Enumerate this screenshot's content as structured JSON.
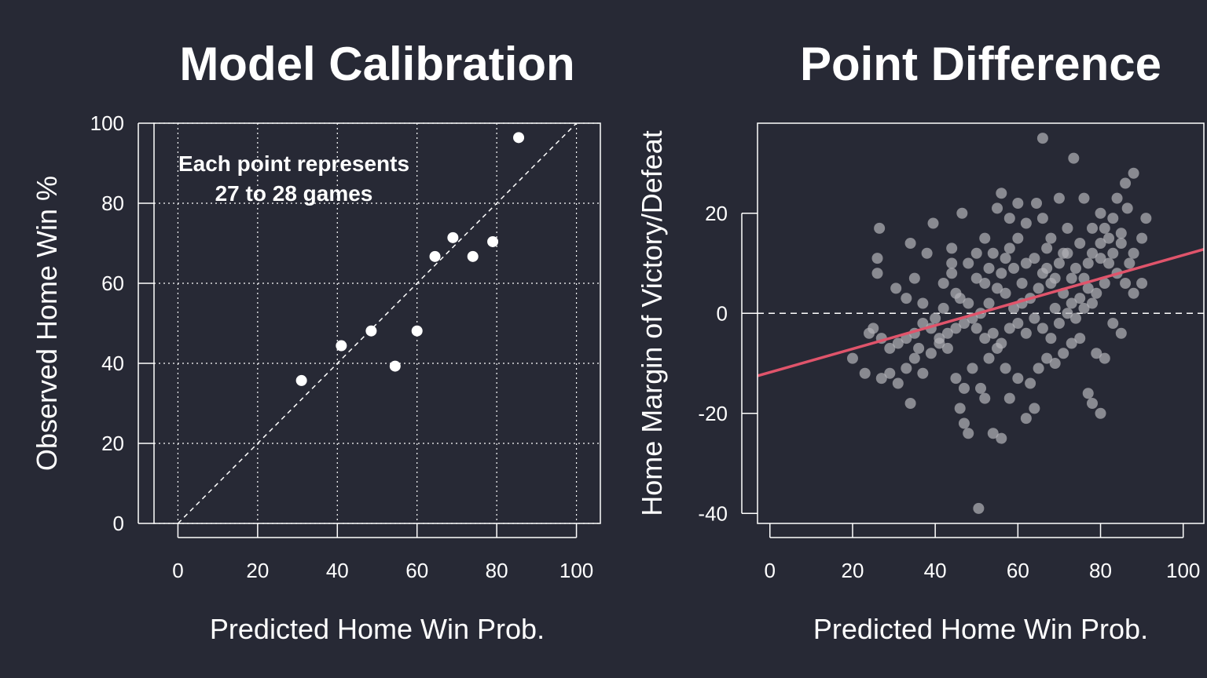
{
  "chart_data": [
    {
      "type": "scatter",
      "title": "Model Calibration",
      "xlabel": "Predicted Home Win Prob.",
      "ylabel": "Observed Home Win %",
      "xlim": [
        -6,
        106
      ],
      "ylim": [
        0,
        100
      ],
      "xticks": [
        0,
        20,
        40,
        60,
        80,
        100
      ],
      "yticks": [
        0,
        20,
        40,
        60,
        80,
        100
      ],
      "grid": true,
      "reference_line": "y = x (dashed)",
      "annotation": [
        "Each point represents",
        "27 to 28 games"
      ],
      "points": [
        {
          "x": 31,
          "y": 35.7
        },
        {
          "x": 41,
          "y": 44.4
        },
        {
          "x": 48.5,
          "y": 48.1
        },
        {
          "x": 54.5,
          "y": 39.3
        },
        {
          "x": 60,
          "y": 48.1
        },
        {
          "x": 64.5,
          "y": 66.7
        },
        {
          "x": 69,
          "y": 71.4
        },
        {
          "x": 74,
          "y": 66.7
        },
        {
          "x": 79,
          "y": 70.4
        },
        {
          "x": 85.5,
          "y": 96.4
        }
      ],
      "colors": {
        "points": "#ffffff",
        "reference": "#ffffff"
      }
    },
    {
      "type": "scatter",
      "title": "Point Difference",
      "xlabel": "Predicted Home Win Prob.",
      "ylabel": "Home Margin of Victory/Defeat",
      "xlim": [
        -3,
        105
      ],
      "ylim": [
        -42,
        38
      ],
      "xticks": [
        0,
        20,
        40,
        60,
        80,
        100
      ],
      "yticks": [
        -40,
        -20,
        0,
        20
      ],
      "grid": false,
      "zero_line": "y = 0 (dashed)",
      "trend_line": {
        "x0": -3,
        "y0": -12.5,
        "x1": 105,
        "y1": 12.8
      },
      "points": [
        {
          "x": 26.5,
          "y": 17
        },
        {
          "x": 34,
          "y": 14
        },
        {
          "x": 26,
          "y": 11
        },
        {
          "x": 30.5,
          "y": 5
        },
        {
          "x": 35,
          "y": 7
        },
        {
          "x": 38,
          "y": 12
        },
        {
          "x": 26,
          "y": 8
        },
        {
          "x": 37,
          "y": 2
        },
        {
          "x": 33,
          "y": 3
        },
        {
          "x": 39.5,
          "y": 18
        },
        {
          "x": 44,
          "y": 13
        },
        {
          "x": 46.5,
          "y": 20
        },
        {
          "x": 52,
          "y": 15
        },
        {
          "x": 55,
          "y": 21
        },
        {
          "x": 56,
          "y": 24
        },
        {
          "x": 66,
          "y": 35
        },
        {
          "x": 73.5,
          "y": 31
        },
        {
          "x": 64.5,
          "y": 22
        },
        {
          "x": 70,
          "y": 23
        },
        {
          "x": 76,
          "y": 23
        },
        {
          "x": 80,
          "y": 20
        },
        {
          "x": 84,
          "y": 23
        },
        {
          "x": 86,
          "y": 26
        },
        {
          "x": 88,
          "y": 28
        },
        {
          "x": 91,
          "y": 19
        },
        {
          "x": 86.5,
          "y": 21
        },
        {
          "x": 88,
          "y": 12
        },
        {
          "x": 90,
          "y": 15
        },
        {
          "x": 78,
          "y": 17
        },
        {
          "x": 72,
          "y": 17
        },
        {
          "x": 68,
          "y": 15
        },
        {
          "x": 62,
          "y": 18
        },
        {
          "x": 60,
          "y": 15
        },
        {
          "x": 58,
          "y": 13
        },
        {
          "x": 54,
          "y": 12
        },
        {
          "x": 50,
          "y": 12
        },
        {
          "x": 48,
          "y": 10
        },
        {
          "x": 44,
          "y": 8
        },
        {
          "x": 42,
          "y": 6
        },
        {
          "x": 45,
          "y": 4
        },
        {
          "x": 48,
          "y": 2
        },
        {
          "x": 46,
          "y": 3
        },
        {
          "x": 52,
          "y": 6
        },
        {
          "x": 56,
          "y": 8
        },
        {
          "x": 59,
          "y": 9
        },
        {
          "x": 62,
          "y": 10
        },
        {
          "x": 64,
          "y": 11
        },
        {
          "x": 66,
          "y": 8
        },
        {
          "x": 68,
          "y": 6
        },
        {
          "x": 70,
          "y": 10
        },
        {
          "x": 72,
          "y": 12
        },
        {
          "x": 74,
          "y": 9
        },
        {
          "x": 76,
          "y": 7
        },
        {
          "x": 78,
          "y": 12
        },
        {
          "x": 80,
          "y": 14
        },
        {
          "x": 82,
          "y": 10
        },
        {
          "x": 84,
          "y": 8
        },
        {
          "x": 86,
          "y": 6
        },
        {
          "x": 88,
          "y": 4
        },
        {
          "x": 90,
          "y": 6
        },
        {
          "x": 82,
          "y": 15
        },
        {
          "x": 80,
          "y": 11
        },
        {
          "x": 77,
          "y": 5
        },
        {
          "x": 75,
          "y": 3
        },
        {
          "x": 73,
          "y": 2
        },
        {
          "x": 71,
          "y": 4
        },
        {
          "x": 69,
          "y": 7
        },
        {
          "x": 67,
          "y": 9
        },
        {
          "x": 65,
          "y": 5
        },
        {
          "x": 63,
          "y": 3
        },
        {
          "x": 61,
          "y": 2
        },
        {
          "x": 59,
          "y": 1
        },
        {
          "x": 57,
          "y": 4
        },
        {
          "x": 55,
          "y": 5
        },
        {
          "x": 53,
          "y": 2
        },
        {
          "x": 51,
          "y": 0
        },
        {
          "x": 49,
          "y": -1
        },
        {
          "x": 47,
          "y": -2
        },
        {
          "x": 45,
          "y": -3
        },
        {
          "x": 43,
          "y": -4
        },
        {
          "x": 41,
          "y": -5
        },
        {
          "x": 39,
          "y": -3
        },
        {
          "x": 37,
          "y": -2
        },
        {
          "x": 35,
          "y": -4
        },
        {
          "x": 33,
          "y": -5
        },
        {
          "x": 31,
          "y": -6
        },
        {
          "x": 29,
          "y": -7
        },
        {
          "x": 27,
          "y": -5
        },
        {
          "x": 25,
          "y": -3
        },
        {
          "x": 24,
          "y": -4
        },
        {
          "x": 20,
          "y": -9
        },
        {
          "x": 23,
          "y": -12
        },
        {
          "x": 27,
          "y": -13
        },
        {
          "x": 29,
          "y": -12
        },
        {
          "x": 31,
          "y": -14
        },
        {
          "x": 33,
          "y": -11
        },
        {
          "x": 34,
          "y": -18
        },
        {
          "x": 35,
          "y": -9
        },
        {
          "x": 37,
          "y": -12
        },
        {
          "x": 39,
          "y": -8
        },
        {
          "x": 41,
          "y": -6
        },
        {
          "x": 43,
          "y": -7
        },
        {
          "x": 45,
          "y": -13
        },
        {
          "x": 46,
          "y": -19
        },
        {
          "x": 47,
          "y": -22
        },
        {
          "x": 48,
          "y": -24
        },
        {
          "x": 47,
          "y": -15
        },
        {
          "x": 49,
          "y": -11
        },
        {
          "x": 51,
          "y": -15
        },
        {
          "x": 52,
          "y": -17
        },
        {
          "x": 54,
          "y": -24
        },
        {
          "x": 56,
          "y": -25
        },
        {
          "x": 53,
          "y": -9
        },
        {
          "x": 55,
          "y": -7
        },
        {
          "x": 57,
          "y": -11
        },
        {
          "x": 58,
          "y": -17
        },
        {
          "x": 60,
          "y": -13
        },
        {
          "x": 62,
          "y": -21
        },
        {
          "x": 64,
          "y": -19
        },
        {
          "x": 63,
          "y": -14
        },
        {
          "x": 65,
          "y": -11
        },
        {
          "x": 67,
          "y": -9
        },
        {
          "x": 69,
          "y": -10
        },
        {
          "x": 71,
          "y": -8
        },
        {
          "x": 73,
          "y": -6
        },
        {
          "x": 75,
          "y": -5
        },
        {
          "x": 77,
          "y": -16
        },
        {
          "x": 78,
          "y": -18
        },
        {
          "x": 80,
          "y": -20
        },
        {
          "x": 79,
          "y": -8
        },
        {
          "x": 81,
          "y": -9
        },
        {
          "x": 83,
          "y": -2
        },
        {
          "x": 85,
          "y": -4
        },
        {
          "x": 58,
          "y": -3
        },
        {
          "x": 60,
          "y": -2
        },
        {
          "x": 62,
          "y": -4
        },
        {
          "x": 64,
          "y": -1
        },
        {
          "x": 66,
          "y": -3
        },
        {
          "x": 68,
          "y": -5
        },
        {
          "x": 70,
          "y": -2
        },
        {
          "x": 72,
          "y": 0
        },
        {
          "x": 74,
          "y": -1
        },
        {
          "x": 76,
          "y": 1
        },
        {
          "x": 78,
          "y": 2
        },
        {
          "x": 56,
          "y": -6
        },
        {
          "x": 54,
          "y": -4
        },
        {
          "x": 52,
          "y": -5
        },
        {
          "x": 50,
          "y": -3
        },
        {
          "x": 50.5,
          "y": -39
        },
        {
          "x": 36,
          "y": -7
        },
        {
          "x": 40,
          "y": -1
        },
        {
          "x": 42,
          "y": 1
        },
        {
          "x": 44,
          "y": 10
        },
        {
          "x": 50,
          "y": 7
        },
        {
          "x": 58,
          "y": 19
        },
        {
          "x": 60,
          "y": 22
        },
        {
          "x": 66,
          "y": 19
        },
        {
          "x": 71,
          "y": 12
        },
        {
          "x": 75,
          "y": 14
        },
        {
          "x": 83,
          "y": 12
        },
        {
          "x": 85,
          "y": 14
        },
        {
          "x": 87,
          "y": 10
        },
        {
          "x": 81,
          "y": 6
        },
        {
          "x": 79,
          "y": 4
        },
        {
          "x": 61,
          "y": 6
        },
        {
          "x": 57,
          "y": 11
        },
        {
          "x": 53,
          "y": 9
        },
        {
          "x": 67,
          "y": 13
        },
        {
          "x": 69,
          "y": 1
        },
        {
          "x": 73,
          "y": 7
        },
        {
          "x": 77,
          "y": 10
        },
        {
          "x": 81,
          "y": 17
        },
        {
          "x": 83,
          "y": 19
        },
        {
          "x": 85,
          "y": 16
        }
      ],
      "colors": {
        "points": "#b0b0b6",
        "trend": "#e0546b",
        "reference": "#ffffff"
      }
    }
  ]
}
